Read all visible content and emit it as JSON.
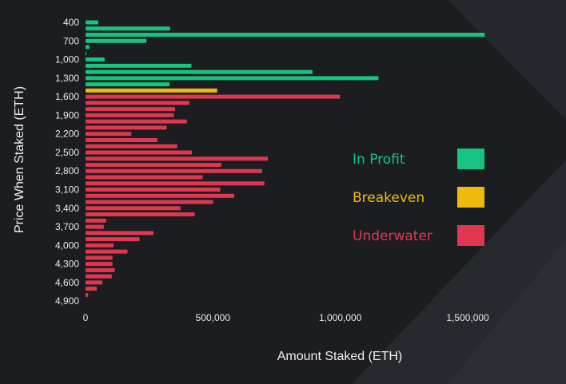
{
  "chart_data": {
    "type": "bar",
    "orientation": "horizontal",
    "xlabel": "Amount Staked (ETH)",
    "ylabel": "Price When Staked (ETH)",
    "xlim": [
      0,
      1700000
    ],
    "x_ticks": [
      "0",
      "500,000",
      "1,000,000",
      "1,500,000"
    ],
    "x_tick_values": [
      0,
      500000,
      1000000,
      1500000
    ],
    "y_ticks": [
      "400",
      "700",
      "1,000",
      "1,300",
      "1,600",
      "1,900",
      "2,200",
      "2,500",
      "2,800",
      "3,100",
      "3,400",
      "3,700",
      "4,000",
      "4,300",
      "4,600",
      "4,900"
    ],
    "grid": false,
    "legend_placement": "right",
    "categories": [
      400,
      500,
      600,
      700,
      800,
      900,
      1000,
      1100,
      1200,
      1300,
      1400,
      1500,
      1600,
      1700,
      1800,
      1900,
      2000,
      2100,
      2200,
      2300,
      2400,
      2500,
      2600,
      2700,
      2800,
      2900,
      3000,
      3100,
      3200,
      3300,
      3400,
      3500,
      3600,
      3700,
      3800,
      3900,
      4000,
      4100,
      4200,
      4300,
      4400,
      4500,
      4600,
      4700,
      4800,
      4900
    ],
    "values": [
      50000,
      332000,
      1567000,
      239000,
      15000,
      1000,
      75000,
      416000,
      891000,
      1150000,
      330000,
      517000,
      999000,
      408000,
      351000,
      347000,
      398000,
      319000,
      180000,
      282000,
      360000,
      418000,
      716000,
      533000,
      693000,
      460000,
      702000,
      529000,
      584000,
      501000,
      373000,
      429000,
      81000,
      72000,
      267000,
      212000,
      110000,
      165000,
      106000,
      106000,
      115000,
      103000,
      66000,
      44000,
      10000,
      0
    ],
    "status": [
      "profit",
      "profit",
      "profit",
      "profit",
      "profit",
      "profit",
      "profit",
      "profit",
      "profit",
      "profit",
      "profit",
      "breakeven",
      "underwater",
      "underwater",
      "underwater",
      "underwater",
      "underwater",
      "underwater",
      "underwater",
      "underwater",
      "underwater",
      "underwater",
      "underwater",
      "underwater",
      "underwater",
      "underwater",
      "underwater",
      "underwater",
      "underwater",
      "underwater",
      "underwater",
      "underwater",
      "underwater",
      "underwater",
      "underwater",
      "underwater",
      "underwater",
      "underwater",
      "underwater",
      "underwater",
      "underwater",
      "underwater",
      "underwater",
      "underwater",
      "underwater",
      "underwater"
    ],
    "legend": [
      {
        "key": "profit",
        "label": "In Profit",
        "color": "#16c47f"
      },
      {
        "key": "breakeven",
        "label": "Breakeven",
        "color": "#f0b90b"
      },
      {
        "key": "underwater",
        "label": "Underwater",
        "color": "#e0374f"
      }
    ]
  },
  "colors": {
    "background": "#1b1d21",
    "text": "#e8e8e8"
  }
}
